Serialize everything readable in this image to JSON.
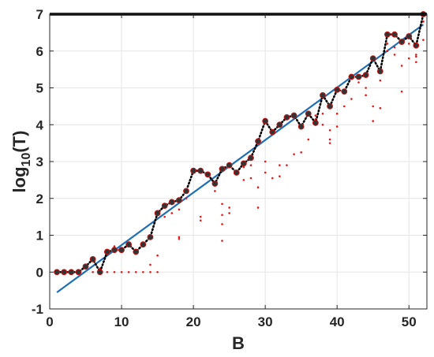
{
  "chart_data": {
    "type": "scatter",
    "xlabel": "B",
    "ylabel_base": "log",
    "ylabel_sub": "10",
    "ylabel_arg": "(T)",
    "xlim": [
      0,
      52.5
    ],
    "ylim": [
      -1,
      7
    ],
    "xticks": [
      0,
      10,
      20,
      30,
      40,
      50
    ],
    "yticks": [
      -1,
      0,
      1,
      2,
      3,
      4,
      5,
      6,
      7
    ],
    "grid": true,
    "colors": {
      "dots": "#e8171a",
      "markers": "#333333",
      "marker_edge": "#c81414",
      "dotted_line": "#000000",
      "fit_line": "#1f6fb4",
      "limit_line": "#000000",
      "axis": "#262626",
      "grid": "#e6e6e6"
    },
    "limit_line": {
      "y": 7
    },
    "fit_line": {
      "x": [
        1,
        52
      ],
      "y": [
        -0.55,
        6.72
      ]
    },
    "series": [
      {
        "kind": "markers_dotted",
        "x": [
          1,
          2,
          3,
          4,
          5,
          6,
          7,
          8,
          9,
          10,
          11,
          12,
          13,
          14,
          15,
          16,
          17,
          18,
          19,
          20,
          21,
          22,
          23,
          24,
          25,
          26,
          27,
          28,
          29,
          30,
          31,
          32,
          33,
          34,
          35,
          36,
          37,
          38,
          39,
          40,
          41,
          42,
          43,
          44,
          45,
          46,
          47,
          48,
          49,
          50,
          51,
          52
        ],
        "y": [
          0,
          0,
          0,
          0,
          0.15,
          0.35,
          0,
          0.55,
          0.6,
          0.6,
          0.75,
          0.55,
          0.75,
          0.95,
          1.6,
          1.8,
          1.9,
          1.95,
          2.2,
          2.75,
          2.75,
          2.65,
          2.4,
          2.8,
          2.9,
          2.7,
          2.95,
          3.1,
          3.55,
          4.1,
          3.8,
          4.0,
          4.2,
          4.25,
          3.95,
          4.3,
          4.05,
          4.8,
          4.5,
          4.95,
          4.9,
          5.3,
          5.3,
          5.35,
          5.8,
          5.45,
          6.45,
          6.45,
          6.25,
          6.4,
          6.15,
          7.0
        ]
      },
      {
        "kind": "dots",
        "points": [
          [
            6,
            0
          ],
          [
            7,
            0.1
          ],
          [
            8,
            0
          ],
          [
            9,
            0
          ],
          [
            10,
            0
          ],
          [
            11,
            0
          ],
          [
            12,
            0
          ],
          [
            13,
            0
          ],
          [
            14,
            0
          ],
          [
            15,
            0
          ],
          [
            8,
            0.6
          ],
          [
            9,
            0.7
          ],
          [
            12,
            0.6
          ],
          [
            13,
            0.7
          ],
          [
            14,
            0.2
          ],
          [
            15,
            0.45
          ],
          [
            16,
            1.5
          ],
          [
            17,
            1.6
          ],
          [
            18,
            0.9
          ],
          [
            18,
            0.95
          ],
          [
            18,
            1.7
          ],
          [
            19,
            2.0
          ],
          [
            21,
            1.4
          ],
          [
            21,
            1.5
          ],
          [
            22,
            2.6
          ],
          [
            23,
            2.2
          ],
          [
            23,
            2.4
          ],
          [
            24,
            0.85
          ],
          [
            24,
            1.85
          ],
          [
            24,
            1.3
          ],
          [
            24,
            1.55
          ],
          [
            25,
            1.75
          ],
          [
            25,
            1.6
          ],
          [
            26,
            2.65
          ],
          [
            27,
            2.5
          ],
          [
            27,
            2.85
          ],
          [
            28,
            2.55
          ],
          [
            28,
            2.9
          ],
          [
            29,
            1.75
          ],
          [
            29,
            2.3
          ],
          [
            30,
            2.7
          ],
          [
            30,
            3.0
          ],
          [
            31,
            2.55
          ],
          [
            32,
            2.6
          ],
          [
            32,
            2.9
          ],
          [
            33,
            2.9
          ],
          [
            34,
            3.2
          ],
          [
            35,
            3.25
          ],
          [
            36,
            3.6
          ],
          [
            37,
            4.15
          ],
          [
            37,
            4.25
          ],
          [
            38,
            4.0
          ],
          [
            38,
            4.3
          ],
          [
            39,
            3.5
          ],
          [
            39,
            3.85
          ],
          [
            39,
            3.6
          ],
          [
            40,
            3.95
          ],
          [
            40,
            4.3
          ],
          [
            41,
            4.5
          ],
          [
            42,
            4.7
          ],
          [
            43,
            5.15
          ],
          [
            44,
            4.8
          ],
          [
            44,
            5.0
          ],
          [
            45,
            4.1
          ],
          [
            45,
            4.5
          ],
          [
            46,
            4.45
          ],
          [
            46,
            5.2
          ],
          [
            47,
            6.0
          ],
          [
            47,
            6.2
          ],
          [
            48,
            5.9
          ],
          [
            48,
            6.1
          ],
          [
            49,
            4.9
          ],
          [
            49,
            5.6
          ],
          [
            50,
            5.8
          ],
          [
            50,
            6.2
          ],
          [
            51,
            5.7
          ],
          [
            51,
            5.85
          ],
          [
            51,
            5.9
          ],
          [
            52,
            6.3
          ],
          [
            52,
            6.8
          ]
        ]
      }
    ]
  }
}
